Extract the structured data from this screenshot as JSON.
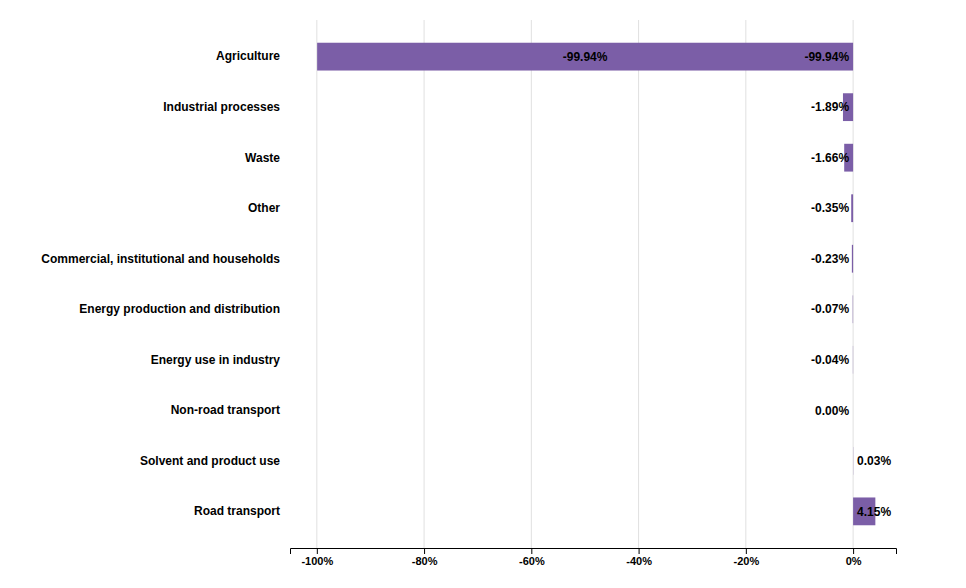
{
  "chart_data": {
    "type": "bar",
    "orientation": "horizontal",
    "categories": [
      "Road transport",
      "Solvent and product use",
      "Non-road transport",
      "Energy use in industry",
      "Energy production and distribution",
      "Commercial, institutional and households",
      "Other",
      "Waste",
      "Industrial processes",
      "Agriculture"
    ],
    "values": [
      4.15,
      0.03,
      0.0,
      -0.04,
      -0.07,
      -0.23,
      -0.35,
      -1.66,
      -1.89,
      -99.94
    ],
    "value_labels": [
      "4.15%",
      "0.03%",
      "0.00%",
      "-0.04%",
      "-0.07%",
      "-0.23%",
      "-0.35%",
      "-1.66%",
      "-1.89%",
      "-99.94%"
    ],
    "color": "#7b5ea7",
    "xlim": [
      -105,
      8
    ],
    "xticks": [
      {
        "value": -100,
        "label": "-100%"
      },
      {
        "value": -80,
        "label": "-80%"
      },
      {
        "value": -60,
        "label": "-60%"
      },
      {
        "value": -40,
        "label": "-40%"
      },
      {
        "value": -20,
        "label": "-20%"
      },
      {
        "value": 0,
        "label": "0%"
      }
    ],
    "grid": true,
    "data_labels": true
  }
}
